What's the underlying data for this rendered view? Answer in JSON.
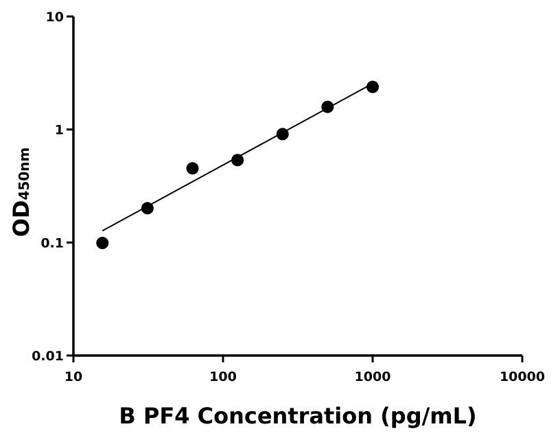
{
  "chart_data": {
    "type": "scatter",
    "x_label": "B PF4 Concentration (pg/mL)",
    "y_label": "OD",
    "y_label_sub": "450nm",
    "log_x": true,
    "log_y": true,
    "xlim": [
      10,
      10000
    ],
    "xticks": [
      10,
      100,
      1000,
      10000
    ],
    "ylim": [
      0.01,
      10
    ],
    "yticks": [
      0.01,
      0.1,
      1,
      10
    ],
    "series": [
      {
        "color": "#000000",
        "mode": "markers",
        "x": [
          15.625,
          31.25,
          62.5,
          125,
          250,
          500,
          1000
        ],
        "values": [
          0.099,
          0.201,
          0.453,
          0.536,
          0.91,
          1.585,
          2.38
        ]
      },
      {
        "color": "#000000",
        "mode": "line",
        "x": [
          15.625,
          1000
        ],
        "values": [
          0.127,
          2.55
        ]
      }
    ]
  }
}
